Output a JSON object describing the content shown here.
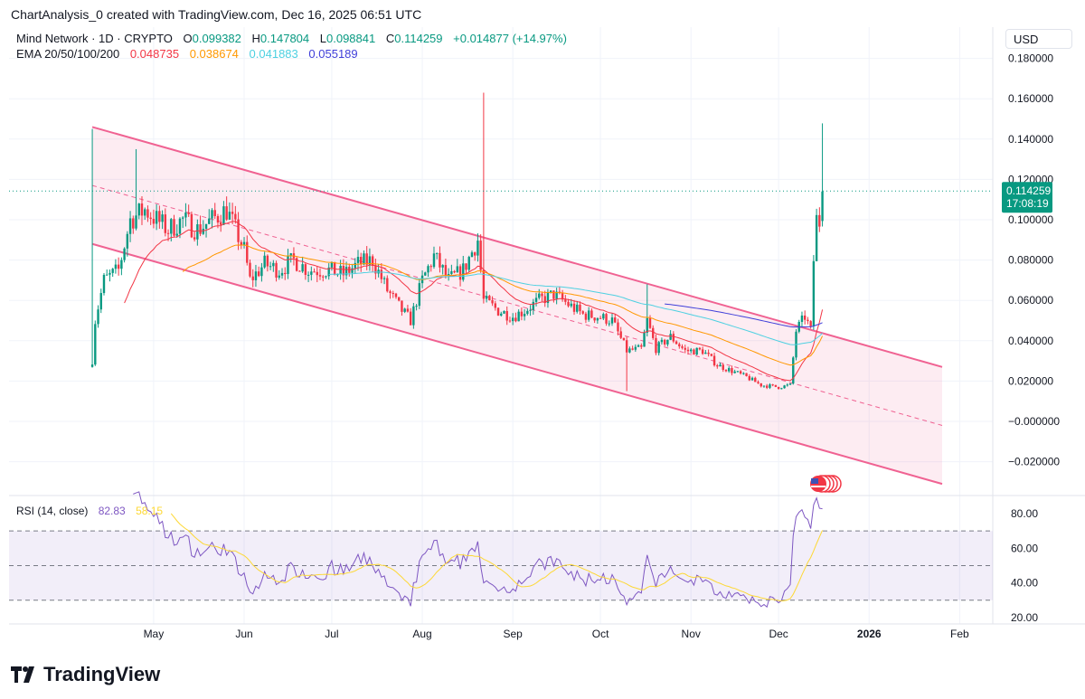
{
  "caption": "ChartAnalysis_0 created with TradingView.com, Dec 16, 2025 06:51 UTC",
  "legend": {
    "symbol": "Mind Network · 1D · CRYPTO",
    "o_label": "O",
    "o": "0.099382",
    "h_label": "H",
    "h": "0.147804",
    "l_label": "L",
    "l": "0.098841",
    "c_label": "C",
    "c": "0.114259",
    "change": "+0.014877 (+14.97%)",
    "ema_label": "EMA 20/50/100/200",
    "ema20": "0.048735",
    "ema50": "0.038674",
    "ema100": "0.041883",
    "ema200": "0.055189"
  },
  "currency": "USD",
  "price_tag": {
    "price": "0.114259",
    "countdown": "17:08:19"
  },
  "rsi_legend": {
    "label": "RSI (14, close)",
    "rsi": "82.83",
    "ma": "58.15"
  },
  "brand": "TradingView",
  "colors": {
    "up": "#089981",
    "down": "#f23645",
    "ema20": "#f23645",
    "ema50": "#ff9800",
    "ema100": "#4dd0e1",
    "ema200": "#3f3fd9",
    "channel": "#f06292",
    "rsi": "#7e57c2",
    "rsi_ma": "#fdd835"
  },
  "chart_data": [
    {
      "type": "candlestick",
      "title": "Mind Network · 1D · CRYPTO",
      "y_ticks": [
        "0.180000",
        "0.160000",
        "0.140000",
        "0.120000",
        "0.100000",
        "0.080000",
        "0.060000",
        "0.040000",
        "0.020000",
        "−0.000000",
        "−0.020000"
      ],
      "y_tick_values": [
        0.18,
        0.16,
        0.14,
        0.12,
        0.1,
        0.08,
        0.06,
        0.04,
        0.02,
        0,
        -0.02
      ],
      "ylim": [
        -0.032,
        0.195
      ],
      "x_ticks": [
        "May",
        "Jun",
        "Jul",
        "Aug",
        "Sep",
        "Oct",
        "Nov",
        "Dec",
        "2026",
        "Feb"
      ],
      "x_tick_days": [
        30,
        61,
        91,
        122,
        153,
        183,
        214,
        244,
        275,
        306
      ],
      "x_unit": "days since Apr 1 2025",
      "close_anchors": [
        [
          9,
          0.03
        ],
        [
          10,
          0.05
        ],
        [
          13,
          0.07
        ],
        [
          18,
          0.075
        ],
        [
          22,
          0.1
        ],
        [
          27,
          0.105
        ],
        [
          31,
          0.1
        ],
        [
          35,
          0.095
        ],
        [
          40,
          0.1
        ],
        [
          45,
          0.095
        ],
        [
          50,
          0.1
        ],
        [
          55,
          0.105
        ],
        [
          58,
          0.095
        ],
        [
          61,
          0.085
        ],
        [
          63,
          0.07
        ],
        [
          68,
          0.078
        ],
        [
          73,
          0.075
        ],
        [
          78,
          0.08
        ],
        [
          83,
          0.075
        ],
        [
          90,
          0.075
        ],
        [
          95,
          0.073
        ],
        [
          100,
          0.078
        ],
        [
          105,
          0.08
        ],
        [
          110,
          0.065
        ],
        [
          115,
          0.055
        ],
        [
          118,
          0.05
        ],
        [
          122,
          0.07
        ],
        [
          126,
          0.082
        ],
        [
          131,
          0.07
        ],
        [
          136,
          0.075
        ],
        [
          141,
          0.09
        ],
        [
          143,
          0.06
        ],
        [
          148,
          0.055
        ],
        [
          153,
          0.052
        ],
        [
          157,
          0.055
        ],
        [
          162,
          0.06
        ],
        [
          167,
          0.063
        ],
        [
          172,
          0.058
        ],
        [
          177,
          0.053
        ],
        [
          182,
          0.052
        ],
        [
          187,
          0.05
        ],
        [
          192,
          0.035
        ],
        [
          197,
          0.036
        ],
        [
          199,
          0.05
        ],
        [
          202,
          0.036
        ],
        [
          207,
          0.042
        ],
        [
          212,
          0.035
        ],
        [
          218,
          0.035
        ],
        [
          223,
          0.028
        ],
        [
          228,
          0.025
        ],
        [
          233,
          0.022
        ],
        [
          238,
          0.018
        ],
        [
          244,
          0.017
        ],
        [
          248,
          0.018
        ],
        [
          250,
          0.045
        ],
        [
          253,
          0.052
        ],
        [
          255,
          0.045
        ],
        [
          256,
          0.08
        ],
        [
          257,
          0.1
        ],
        [
          258,
          0.099
        ],
        [
          259,
          0.114
        ]
      ],
      "wick_spikes": [
        [
          9,
          0.145
        ],
        [
          24,
          0.135
        ],
        [
          143,
          0.163
        ],
        [
          192,
          0.015
        ],
        [
          199,
          0.068
        ],
        [
          259,
          0.1478
        ]
      ],
      "channel": {
        "upper": [
          [
            9,
            0.146
          ],
          [
            300,
            0.027
          ]
        ],
        "lower": [
          [
            9,
            0.088
          ],
          [
            300,
            -0.031
          ]
        ],
        "middle": [
          [
            9,
            0.117
          ],
          [
            300,
            -0.002
          ]
        ]
      },
      "current_price": 0.114259,
      "series": [
        {
          "name": "EMA 20"
        },
        {
          "name": "EMA 50"
        },
        {
          "name": "EMA 100"
        },
        {
          "name": "EMA 200"
        }
      ]
    },
    {
      "type": "line",
      "title": "RSI (14, close)",
      "y_ticks": [
        "80.00",
        "60.00",
        "40.00",
        "20.00"
      ],
      "y_tick_values": [
        80,
        60,
        40,
        20
      ],
      "bands": [
        30,
        50,
        70
      ],
      "ylim": [
        17,
        88
      ],
      "series": [
        {
          "name": "RSI"
        },
        {
          "name": "RSI-based MA"
        }
      ]
    }
  ]
}
